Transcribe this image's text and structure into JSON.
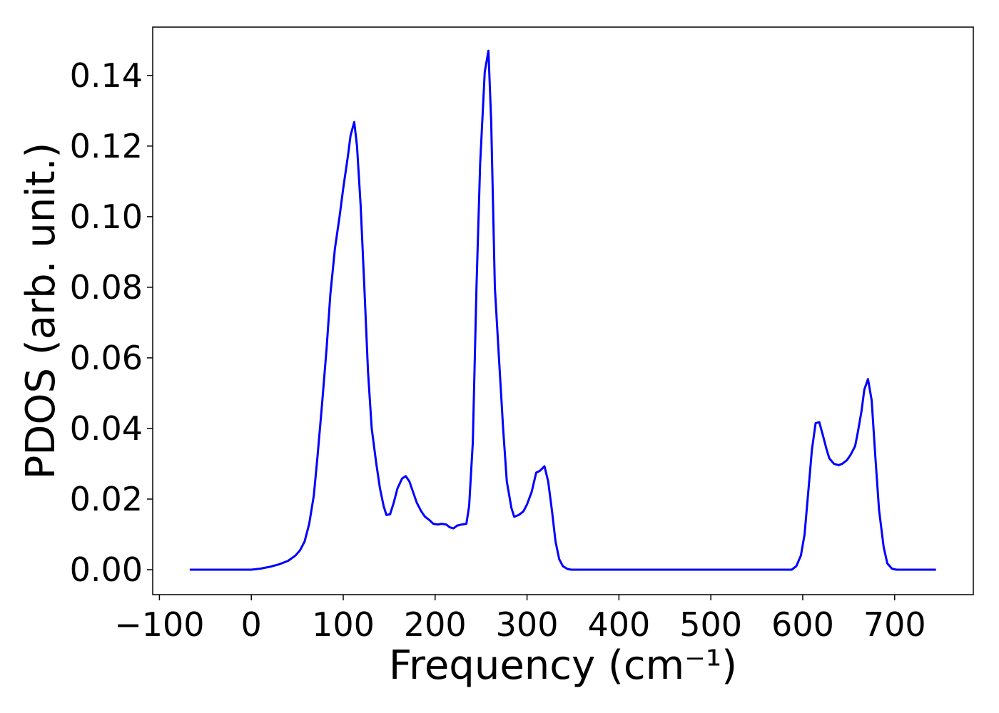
{
  "chart_data": {
    "type": "line",
    "x_label": "Frequency (cm⁻¹)",
    "y_label": "PDOS (arb. unit.)",
    "color": "#0000ff",
    "x": [
      -67,
      0,
      10,
      20,
      30,
      40,
      48,
      53,
      58,
      63,
      68,
      72,
      77,
      82,
      86,
      91,
      96,
      100,
      105,
      108,
      112,
      115,
      119,
      123,
      127,
      131,
      136,
      140,
      144,
      147,
      151,
      155,
      159,
      164,
      168,
      172,
      176,
      180,
      185,
      189,
      194,
      198,
      203,
      207,
      212,
      216,
      220,
      224,
      229,
      234,
      237,
      241,
      245,
      249,
      254,
      258,
      261,
      265,
      269,
      274,
      278,
      283,
      286,
      291,
      296,
      300,
      305,
      310,
      314,
      319,
      323,
      327,
      331,
      335,
      339,
      344,
      348,
      588,
      593,
      598,
      602,
      606,
      610,
      614,
      618,
      622,
      626,
      629,
      634,
      639,
      643,
      648,
      652,
      657,
      660,
      664,
      667,
      671,
      675,
      679,
      683,
      688,
      692,
      697,
      702,
      745
    ],
    "values": [
      0,
      0,
      0.0003,
      0.0008,
      0.0015,
      0.0025,
      0.004,
      0.0055,
      0.008,
      0.013,
      0.021,
      0.032,
      0.047,
      0.063,
      0.078,
      0.091,
      0.1,
      0.108,
      0.117,
      0.123,
      0.1268,
      0.12,
      0.103,
      0.08,
      0.056,
      0.04,
      0.03,
      0.023,
      0.018,
      0.0155,
      0.0157,
      0.019,
      0.023,
      0.0258,
      0.0265,
      0.025,
      0.022,
      0.019,
      0.0165,
      0.015,
      0.014,
      0.013,
      0.0128,
      0.013,
      0.0128,
      0.012,
      0.0117,
      0.0125,
      0.0128,
      0.013,
      0.018,
      0.036,
      0.08,
      0.115,
      0.141,
      0.147,
      0.127,
      0.08,
      0.062,
      0.04,
      0.025,
      0.0175,
      0.015,
      0.0155,
      0.0165,
      0.0185,
      0.022,
      0.0275,
      0.028,
      0.0293,
      0.025,
      0.017,
      0.008,
      0.003,
      0.001,
      0.0002,
      0,
      0,
      0.001,
      0.004,
      0.01,
      0.022,
      0.034,
      0.0415,
      0.0418,
      0.038,
      0.034,
      0.0315,
      0.03,
      0.0296,
      0.03,
      0.031,
      0.0325,
      0.035,
      0.039,
      0.045,
      0.051,
      0.054,
      0.048,
      0.032,
      0.017,
      0.0065,
      0.0018,
      0.0003,
      0,
      0
    ],
    "xlim": [
      -107.3,
      785.6
    ],
    "ylim": [
      -0.00707,
      0.1537
    ],
    "xticks": [
      {
        "value": -100,
        "label": "−100"
      },
      0,
      100,
      200,
      300,
      400,
      500,
      600,
      700
    ],
    "yticks": [
      {
        "value": 0,
        "label": "0.00"
      },
      {
        "value": 0.02,
        "label": "0.02"
      },
      {
        "value": 0.04,
        "label": "0.04"
      },
      {
        "value": 0.06,
        "label": "0.06"
      },
      {
        "value": 0.08,
        "label": "0.08"
      },
      {
        "value": 0.1,
        "label": "0.10"
      },
      {
        "value": 0.12,
        "label": "0.12"
      },
      {
        "value": 0.14,
        "label": "0.14"
      }
    ]
  }
}
